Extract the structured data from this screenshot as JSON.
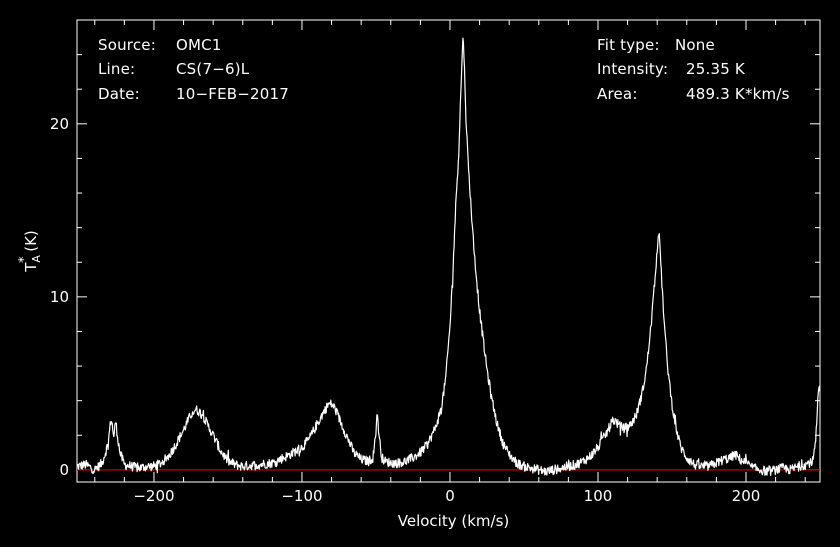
{
  "info_left": {
    "source_label": "Source:",
    "source_value": "OMC1",
    "line_label": "Line:",
    "line_value": "CS(7−6)L",
    "date_label": "Date:",
    "date_value": "10−FEB−2017"
  },
  "info_right": {
    "fit_label": "Fit type:",
    "fit_value": "None",
    "intensity_label": "Intensity:",
    "intensity_value": "25.35 K",
    "area_label": "Area:",
    "area_value": "489.3 K*km/s"
  },
  "colors": {
    "background": "#000000",
    "foreground": "#ffffff",
    "baseline": "#cc0000"
  },
  "chart_data": {
    "type": "line",
    "xlabel": "Velocity (km/s)",
    "ylabel": "T*A (K)",
    "xlim": [
      -252,
      250
    ],
    "ylim": [
      -0.7,
      26
    ],
    "x_ticks": [
      -200,
      -100,
      0,
      100,
      200
    ],
    "y_ticks": [
      0,
      10,
      20
    ],
    "baseline_y": 0,
    "series": [
      {
        "x": [
          -252,
          -246,
          -240,
          -235,
          -231,
          -229,
          -228,
          -227,
          -226,
          -225,
          -223,
          -220,
          -215,
          -210,
          -205,
          -200,
          -195,
          -190,
          -185,
          -180,
          -175,
          -172,
          -170,
          -167,
          -165,
          -160,
          -155,
          -150,
          -145,
          -140,
          -130,
          -120,
          -110,
          -100,
          -95,
          -90,
          -85,
          -82,
          -80,
          -78,
          -75,
          -70,
          -65,
          -60,
          -55,
          -52,
          -50,
          -49,
          -48,
          -46,
          -44,
          -40,
          -35,
          -30,
          -25,
          -20,
          -15,
          -10,
          -6,
          -3,
          0,
          2,
          4,
          6,
          7,
          8,
          9,
          10,
          11,
          12,
          14,
          16,
          18,
          20,
          22,
          25,
          28,
          32,
          36,
          40,
          45,
          50,
          55,
          60,
          65,
          70,
          75,
          80,
          85,
          90,
          95,
          100,
          105,
          108,
          110,
          112,
          115,
          118,
          122,
          126,
          130,
          133,
          136,
          138,
          140,
          141,
          142,
          143,
          145,
          147,
          150,
          153,
          156,
          160,
          165,
          170,
          175,
          180,
          185,
          190,
          192,
          194,
          196,
          200,
          205,
          210,
          215,
          220,
          225,
          230,
          235,
          240,
          245,
          247,
          248,
          249,
          250
        ],
        "y": [
          0.2,
          0.3,
          0.0,
          0.4,
          1.5,
          3.0,
          2.5,
          1.8,
          2.9,
          2.2,
          1.0,
          0.3,
          0.2,
          0.1,
          0.2,
          0.2,
          0.4,
          0.8,
          1.5,
          2.3,
          3.2,
          3.5,
          3.4,
          3.2,
          2.8,
          2.0,
          1.1,
          0.5,
          0.3,
          0.2,
          0.3,
          0.4,
          0.8,
          1.3,
          1.8,
          2.6,
          3.4,
          3.8,
          3.8,
          3.6,
          3.0,
          2.0,
          1.0,
          0.6,
          0.5,
          0.7,
          2.3,
          3.3,
          2.0,
          0.7,
          0.5,
          0.4,
          0.4,
          0.5,
          0.7,
          1.0,
          1.5,
          2.4,
          3.5,
          5.2,
          8.3,
          11.5,
          15.5,
          18.5,
          21.0,
          23.5,
          25.2,
          22.5,
          20.0,
          18.2,
          15.5,
          13.0,
          11.0,
          9.2,
          7.8,
          5.8,
          4.2,
          2.6,
          1.5,
          0.9,
          0.4,
          0.2,
          0.1,
          0.0,
          -0.1,
          0.0,
          0.1,
          0.2,
          0.3,
          0.5,
          0.8,
          1.3,
          2.0,
          2.5,
          2.9,
          2.8,
          2.5,
          2.4,
          2.6,
          3.2,
          4.5,
          6.0,
          8.5,
          10.5,
          12.8,
          13.8,
          12.8,
          11.0,
          8.2,
          6.0,
          3.8,
          2.3,
          1.3,
          0.7,
          0.3,
          0.2,
          0.2,
          0.4,
          0.6,
          0.7,
          0.9,
          0.8,
          0.6,
          0.4,
          0.1,
          0.0,
          -0.1,
          0.0,
          0.1,
          0.0,
          0.2,
          0.3,
          0.5,
          1.5,
          3.0,
          4.8,
          4.5
        ]
      }
    ]
  }
}
